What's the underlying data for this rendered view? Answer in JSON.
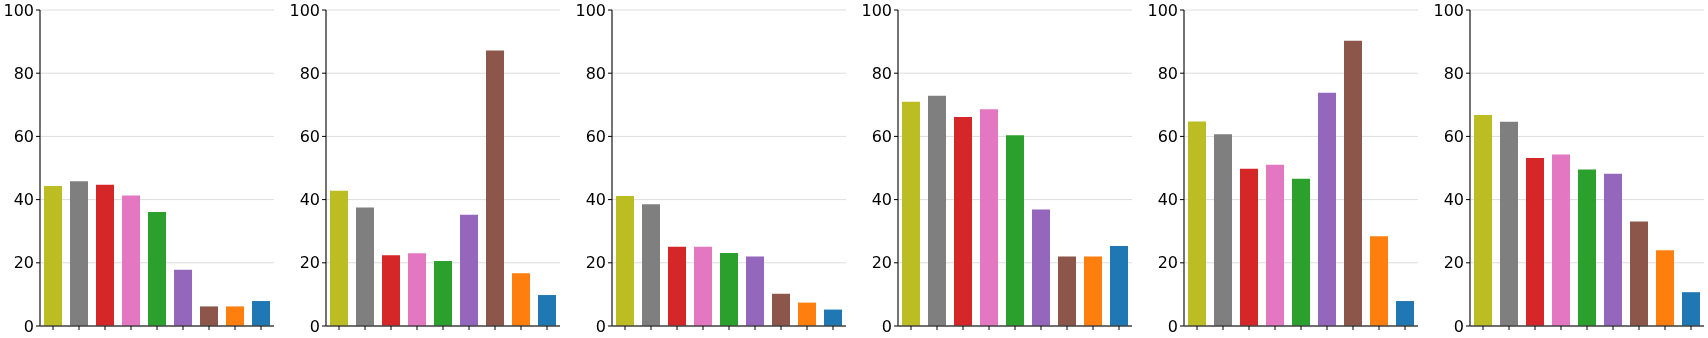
{
  "chart_data": [
    {
      "type": "bar",
      "categories": [
        null,
        null,
        null,
        null,
        null,
        null,
        null,
        null,
        null
      ],
      "values": [
        44.3,
        45.8,
        44.7,
        41.3,
        36.1,
        17.8,
        6.2,
        6.2,
        7.9
      ],
      "colors": [
        "#bcbd22",
        "#7f7f7f",
        "#d62728",
        "#e377c2",
        "#2ca02c",
        "#9467bd",
        "#8c564b",
        "#ff7f0e",
        "#1f77b4"
      ],
      "ylim": [
        0,
        100
      ],
      "yticks": [
        0,
        20,
        40,
        60,
        80,
        100
      ],
      "grid": "y"
    },
    {
      "type": "bar",
      "categories": [
        null,
        null,
        null,
        null,
        null,
        null,
        null,
        null,
        null
      ],
      "values": [
        42.8,
        37.5,
        22.4,
        23.0,
        20.6,
        35.2,
        87.2,
        16.7,
        9.8
      ],
      "colors": [
        "#bcbd22",
        "#7f7f7f",
        "#d62728",
        "#e377c2",
        "#2ca02c",
        "#9467bd",
        "#8c564b",
        "#ff7f0e",
        "#1f77b4"
      ],
      "ylim": [
        0,
        100
      ],
      "yticks": [
        0,
        20,
        40,
        60,
        80,
        100
      ],
      "grid": "y"
    },
    {
      "type": "bar",
      "categories": [
        null,
        null,
        null,
        null,
        null,
        null,
        null,
        null,
        null
      ],
      "values": [
        41.1,
        38.5,
        25.1,
        25.1,
        23.1,
        22.0,
        10.2,
        7.4,
        5.2
      ],
      "colors": [
        "#bcbd22",
        "#7f7f7f",
        "#d62728",
        "#e377c2",
        "#2ca02c",
        "#9467bd",
        "#8c564b",
        "#ff7f0e",
        "#1f77b4"
      ],
      "ylim": [
        0,
        100
      ],
      "yticks": [
        0,
        20,
        40,
        60,
        80,
        100
      ],
      "grid": "y"
    },
    {
      "type": "bar",
      "categories": [
        null,
        null,
        null,
        null,
        null,
        null,
        null,
        null,
        null
      ],
      "values": [
        71.0,
        72.9,
        66.1,
        68.6,
        60.4,
        36.9,
        22.0,
        22.0,
        25.3
      ],
      "colors": [
        "#bcbd22",
        "#7f7f7f",
        "#d62728",
        "#e377c2",
        "#2ca02c",
        "#9467bd",
        "#8c564b",
        "#ff7f0e",
        "#1f77b4"
      ],
      "ylim": [
        0,
        100
      ],
      "yticks": [
        0,
        20,
        40,
        60,
        80,
        100
      ],
      "grid": "y"
    },
    {
      "type": "bar",
      "categories": [
        null,
        null,
        null,
        null,
        null,
        null,
        null,
        null,
        null
      ],
      "values": [
        64.7,
        60.7,
        49.8,
        51.0,
        46.6,
        73.8,
        90.3,
        28.4,
        7.9
      ],
      "colors": [
        "#bcbd22",
        "#7f7f7f",
        "#d62728",
        "#e377c2",
        "#2ca02c",
        "#9467bd",
        "#8c564b",
        "#ff7f0e",
        "#1f77b4"
      ],
      "ylim": [
        0,
        100
      ],
      "yticks": [
        0,
        20,
        40,
        60,
        80,
        100
      ],
      "grid": "y"
    },
    {
      "type": "bar",
      "categories": [
        null,
        null,
        null,
        null,
        null,
        null,
        null,
        null,
        null
      ],
      "values": [
        66.8,
        64.6,
        53.2,
        54.3,
        49.5,
        48.2,
        33.1,
        24.0,
        10.7
      ],
      "colors": [
        "#bcbd22",
        "#7f7f7f",
        "#d62728",
        "#e377c2",
        "#2ca02c",
        "#9467bd",
        "#8c564b",
        "#ff7f0e",
        "#1f77b4"
      ],
      "ylim": [
        0,
        100
      ],
      "yticks": [
        0,
        20,
        40,
        60,
        80,
        100
      ],
      "grid": "y"
    }
  ]
}
